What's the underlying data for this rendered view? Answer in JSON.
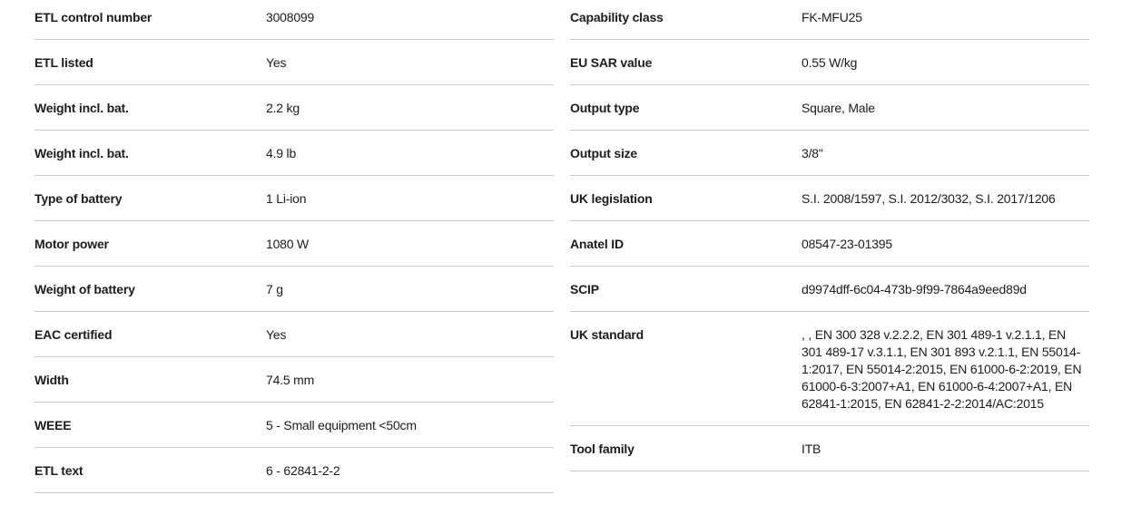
{
  "page": {
    "background_color": "#ffffff",
    "divider_color": "#cbcbcb",
    "text_color": "#1d1d1d"
  },
  "spec_table": {
    "left_column": {
      "rows": [
        {
          "label": "ETL control number",
          "value": "3008099"
        },
        {
          "label": "ETL listed",
          "value": "Yes"
        },
        {
          "label": "Weight incl. bat.",
          "value": "2.2 kg"
        },
        {
          "label": "Weight incl. bat.",
          "value": "4.9 lb"
        },
        {
          "label": "Type of battery",
          "value": "1 Li-ion"
        },
        {
          "label": "Motor power",
          "value": "1080 W"
        },
        {
          "label": "Weight of battery",
          "value": "7 g"
        },
        {
          "label": "EAC certified",
          "value": "Yes"
        },
        {
          "label": "Width",
          "value": "74.5 mm"
        },
        {
          "label": "WEEE",
          "value": "5 - Small equipment <50cm"
        },
        {
          "label": "ETL text",
          "value": "6 - 62841-2-2"
        }
      ]
    },
    "right_column": {
      "rows": [
        {
          "label": "Capability class",
          "value": "FK-MFU25"
        },
        {
          "label": "EU SAR value",
          "value": "0.55 W/kg"
        },
        {
          "label": "Output type",
          "value": "Square, Male"
        },
        {
          "label": "Output size",
          "value": "3/8\""
        },
        {
          "label": "UK legislation",
          "value": "S.I. 2008/1597, S.I. 2012/3032, S.I. 2017/1206"
        },
        {
          "label": "Anatel ID",
          "value": "08547-23-01395"
        },
        {
          "label": "SCIP",
          "value": "d9974dff-6c04-473b-9f99-7864a9eed89d"
        },
        {
          "label": "UK standard",
          "value": ", , EN 300 328 v.2.2.2, EN 301 489-1 v.2.1.1, EN 301 489-17 v.3.1.1, EN 301 893 v.2.1.1, EN 55014-1:2017, EN 55014-2:2015, EN 61000-6-2:2019, EN 61000-6-3:2007+A1, EN 61000-6-4:2007+A1, EN 62841-1:2015, EN 62841-2-2:2014/AC:2015"
        },
        {
          "label": "Tool family",
          "value": "ITB"
        }
      ]
    }
  }
}
